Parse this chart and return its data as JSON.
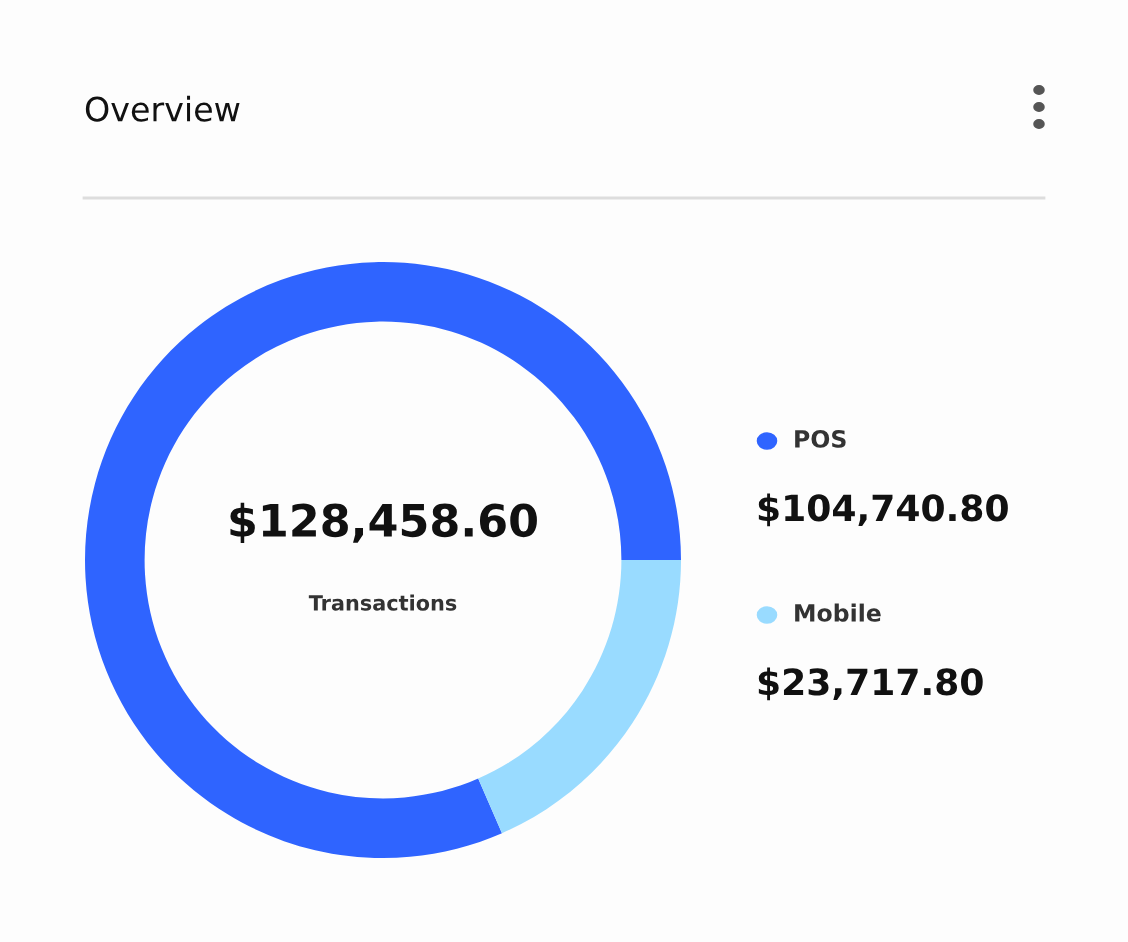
{
  "chart_data": {
    "type": "donut",
    "title": "Overview",
    "categories": [
      "POS",
      "Mobile"
    ],
    "values": [
      104740.8,
      23717.8
    ],
    "colors": [
      "#2f64ff",
      "#99dbff"
    ],
    "value_labels": [
      "$104,740.80",
      "$23,717.80"
    ],
    "annotations": [
      "$128,458.60",
      "Transactions"
    ],
    "legend": "right"
  }
}
